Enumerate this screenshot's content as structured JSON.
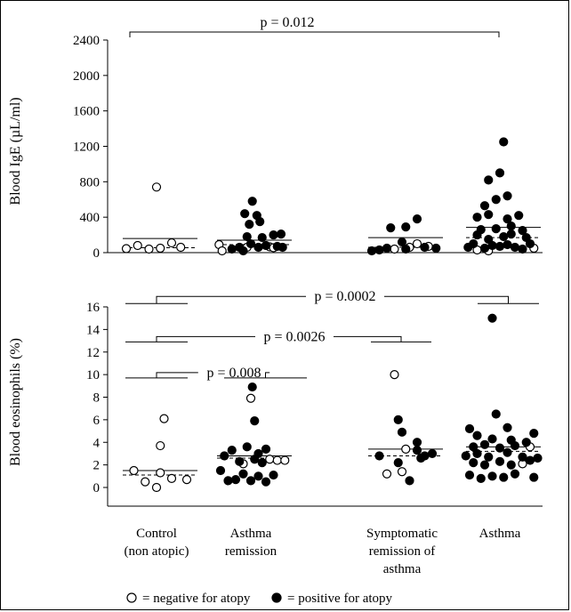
{
  "chart_data": [
    {
      "type": "scatter",
      "ylabel": "Blood IgE (µL/ml)",
      "ylim": [
        0,
        2400
      ],
      "yticks": [
        0,
        400,
        800,
        1200,
        1600,
        2000,
        2400
      ],
      "categories": [
        "Control\n(non atopic)",
        "Asthma\nremission",
        "Symptomatic\nremission of\nasthma",
        "Asthma"
      ],
      "groups": [
        {
          "category": "Control\n(non atopic)",
          "mean": 160,
          "median": 55,
          "negative": [
            [
              -0.4,
              45
            ],
            [
              -0.25,
              80
            ],
            [
              -0.1,
              40
            ],
            [
              0.05,
              50
            ],
            [
              0.2,
              110
            ],
            [
              0.32,
              60
            ],
            [
              0.0,
              740
            ]
          ],
          "positive": []
        },
        {
          "category": "Asthma\nremission",
          "mean": 140,
          "median": 90,
          "negative": [
            [
              -0.42,
              90
            ],
            [
              -0.38,
              20
            ],
            [
              -0.05,
              60
            ],
            [
              0.25,
              65
            ],
            [
              0.3,
              55
            ]
          ],
          "positive": [
            [
              -0.25,
              40
            ],
            [
              -0.15,
              60
            ],
            [
              -0.1,
              20
            ],
            [
              0.0,
              100
            ],
            [
              0.1,
              60
            ],
            [
              0.2,
              80
            ],
            [
              0.35,
              70
            ],
            [
              0.42,
              60
            ],
            [
              -0.05,
              180
            ],
            [
              0.15,
              170
            ],
            [
              0.3,
              200
            ],
            [
              0.4,
              210
            ],
            [
              -0.02,
              320
            ],
            [
              0.12,
              350
            ],
            [
              -0.08,
              440
            ],
            [
              0.08,
              420
            ],
            [
              0.02,
              580
            ]
          ]
        },
        {
          "category": "Symptomatic\nremission of\nasthma",
          "mean": 170,
          "median": 60,
          "negative": [
            [
              -0.1,
              40
            ],
            [
              0.1,
              60
            ],
            [
              0.2,
              100
            ],
            [
              0.35,
              70
            ]
          ],
          "positive": [
            [
              -0.4,
              20
            ],
            [
              -0.3,
              30
            ],
            [
              -0.2,
              50
            ],
            [
              0.0,
              120
            ],
            [
              0.05,
              40
            ],
            [
              0.3,
              60
            ],
            [
              0.45,
              50
            ],
            [
              -0.15,
              280
            ],
            [
              0.05,
              290
            ],
            [
              0.2,
              380
            ]
          ]
        },
        {
          "category": "Asthma",
          "mean": 285,
          "median": 170,
          "negative": [
            [
              -0.3,
              30
            ],
            [
              -0.15,
              20
            ],
            [
              0.45,
              50
            ]
          ],
          "positive": [
            [
              -0.42,
              60
            ],
            [
              -0.35,
              100
            ],
            [
              -0.2,
              50
            ],
            [
              -0.1,
              80
            ],
            [
              0.0,
              70
            ],
            [
              0.1,
              90
            ],
            [
              0.2,
              60
            ],
            [
              0.3,
              40
            ],
            [
              0.4,
              100
            ],
            [
              -0.3,
              200
            ],
            [
              -0.15,
              150
            ],
            [
              0.05,
              180
            ],
            [
              0.15,
              210
            ],
            [
              0.35,
              170
            ],
            [
              -0.25,
              260
            ],
            [
              -0.05,
              270
            ],
            [
              0.15,
              300
            ],
            [
              0.3,
              250
            ],
            [
              -0.3,
              400
            ],
            [
              -0.15,
              430
            ],
            [
              0.1,
              380
            ],
            [
              0.25,
              420
            ],
            [
              -0.2,
              530
            ],
            [
              -0.05,
              600
            ],
            [
              0.1,
              640
            ],
            [
              -0.15,
              820
            ],
            [
              0.0,
              900
            ],
            [
              0.05,
              1250
            ]
          ]
        }
      ],
      "annotations": [
        {
          "text": "p = 0.012",
          "from": 0,
          "to": 3
        }
      ]
    },
    {
      "type": "scatter",
      "ylabel": "Blood eosinophils (%)",
      "ylim": [
        0,
        16
      ],
      "yticks": [
        0,
        2,
        4,
        6,
        8,
        10,
        12,
        14,
        16
      ],
      "categories": [
        "Control\n(non atopic)",
        "Asthma\nremission",
        "Symptomatic\nremission of\nasthma",
        "Asthma"
      ],
      "groups": [
        {
          "category": "Control\n(non atopic)",
          "mean": 1.5,
          "median": 1.1,
          "negative": [
            [
              -0.3,
              1.5
            ],
            [
              -0.15,
              0.5
            ],
            [
              0.0,
              0.0
            ],
            [
              0.05,
              1.3
            ],
            [
              0.2,
              0.8
            ],
            [
              0.4,
              0.7
            ],
            [
              0.05,
              3.7
            ],
            [
              0.1,
              6.1
            ]
          ],
          "positive": []
        },
        {
          "category": "Asthma\nremission",
          "mean": 2.8,
          "median": 2.6,
          "negative": [
            [
              -0.1,
              2.1
            ],
            [
              0.25,
              2.5
            ],
            [
              0.35,
              2.4
            ],
            [
              0.45,
              2.4
            ],
            [
              0.0,
              7.9
            ]
          ],
          "positive": [
            [
              -0.4,
              1.5
            ],
            [
              -0.3,
              0.6
            ],
            [
              -0.2,
              0.7
            ],
            [
              -0.1,
              1.2
            ],
            [
              0.0,
              0.6
            ],
            [
              0.1,
              1.0
            ],
            [
              0.2,
              0.5
            ],
            [
              0.3,
              1.1
            ],
            [
              -0.35,
              2.8
            ],
            [
              -0.15,
              2.3
            ],
            [
              0.05,
              2.5
            ],
            [
              0.15,
              2.2
            ],
            [
              -0.25,
              3.3
            ],
            [
              -0.05,
              3.6
            ],
            [
              0.1,
              3.0
            ],
            [
              0.2,
              3.4
            ],
            [
              0.05,
              5.9
            ],
            [
              0.02,
              8.9
            ]
          ]
        },
        {
          "category": "Symptomatic\nremission of\nasthma",
          "mean": 3.4,
          "median": 2.8,
          "negative": [
            [
              -0.2,
              1.2
            ],
            [
              0.0,
              1.4
            ],
            [
              0.05,
              3.4
            ],
            [
              -0.1,
              10.0
            ]
          ],
          "positive": [
            [
              -0.3,
              2.8
            ],
            [
              -0.05,
              2.2
            ],
            [
              0.1,
              0.6
            ],
            [
              0.2,
              3.3
            ],
            [
              0.3,
              2.8
            ],
            [
              0.2,
              4.0
            ],
            [
              0.0,
              4.9
            ],
            [
              -0.05,
              6.0
            ],
            [
              0.4,
              3.0
            ],
            [
              0.25,
              2.6
            ]
          ]
        },
        {
          "category": "Asthma",
          "mean": 3.6,
          "median": 3.2,
          "negative": [
            [
              0.3,
              2.1
            ],
            [
              0.4,
              3.6
            ]
          ],
          "positive": [
            [
              -0.4,
              1.1
            ],
            [
              -0.25,
              0.8
            ],
            [
              -0.1,
              1.0
            ],
            [
              0.05,
              0.9
            ],
            [
              0.2,
              1.2
            ],
            [
              0.45,
              0.9
            ],
            [
              -0.35,
              2.2
            ],
            [
              -0.2,
              2.0
            ],
            [
              0.0,
              2.3
            ],
            [
              0.15,
              2.0
            ],
            [
              0.4,
              2.4
            ],
            [
              -0.45,
              2.8
            ],
            [
              -0.3,
              3.0
            ],
            [
              -0.15,
              2.7
            ],
            [
              0.1,
              3.1
            ],
            [
              0.3,
              2.7
            ],
            [
              0.5,
              2.6
            ],
            [
              -0.35,
              3.6
            ],
            [
              -0.2,
              3.8
            ],
            [
              0.0,
              3.5
            ],
            [
              0.2,
              3.7
            ],
            [
              0.35,
              4.0
            ],
            [
              -0.3,
              4.6
            ],
            [
              -0.1,
              4.3
            ],
            [
              0.15,
              4.2
            ],
            [
              0.45,
              4.8
            ],
            [
              -0.4,
              5.2
            ],
            [
              0.1,
              5.3
            ],
            [
              -0.05,
              6.5
            ],
            [
              -0.1,
              15.0
            ]
          ]
        }
      ],
      "annotations": [
        {
          "text": "p = 0.0002",
          "from": 0,
          "to": 3,
          "level": 16.3
        },
        {
          "text": "p = 0.0026",
          "from": 0,
          "to": 2,
          "level": 12.9
        },
        {
          "text": "p = 0.008",
          "from": 0,
          "to": 1,
          "level": 9.7
        }
      ]
    }
  ],
  "legend": {
    "negative_label": "= negative for atopy",
    "positive_label": "= positive for atopy"
  }
}
